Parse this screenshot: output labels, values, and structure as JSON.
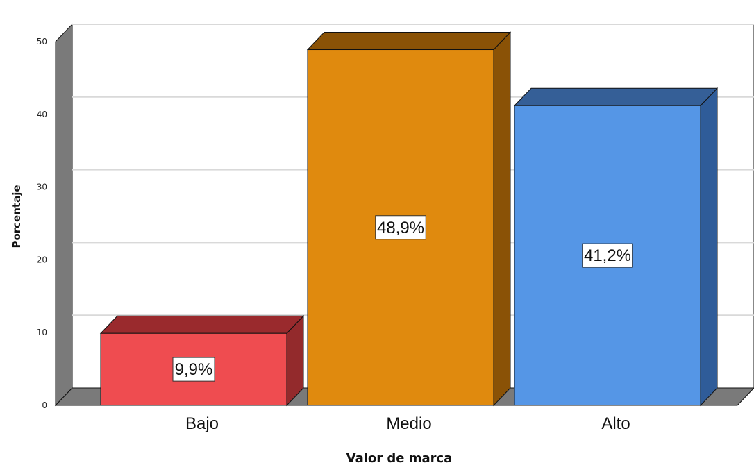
{
  "chart_data": {
    "type": "bar",
    "style": "3d",
    "categories": [
      "Bajo",
      "Medio",
      "Alto"
    ],
    "values": [
      9.9,
      48.9,
      41.2
    ],
    "data_labels": [
      "9,9%",
      "48,9%",
      "41,2%"
    ],
    "xlabel": "Valor de marca",
    "ylabel": "Porcentaje",
    "ylim": [
      0,
      50
    ],
    "yticks": [
      "0",
      "10",
      "20",
      "30",
      "40",
      "50"
    ],
    "grid": true,
    "legend": "none",
    "colors": {
      "Bajo": {
        "front": "#ef4c50",
        "top": "#9a2a2d",
        "side": "#932a2c"
      },
      "Medio": {
        "front": "#e08a0e",
        "top": "#8a5206",
        "side": "#8a5206"
      },
      "Alto": {
        "front": "#5596e6",
        "top": "#355f97",
        "side": "#2f5c99"
      },
      "walls": "#7a7a7a",
      "gridline": "#d9d9d9"
    }
  }
}
